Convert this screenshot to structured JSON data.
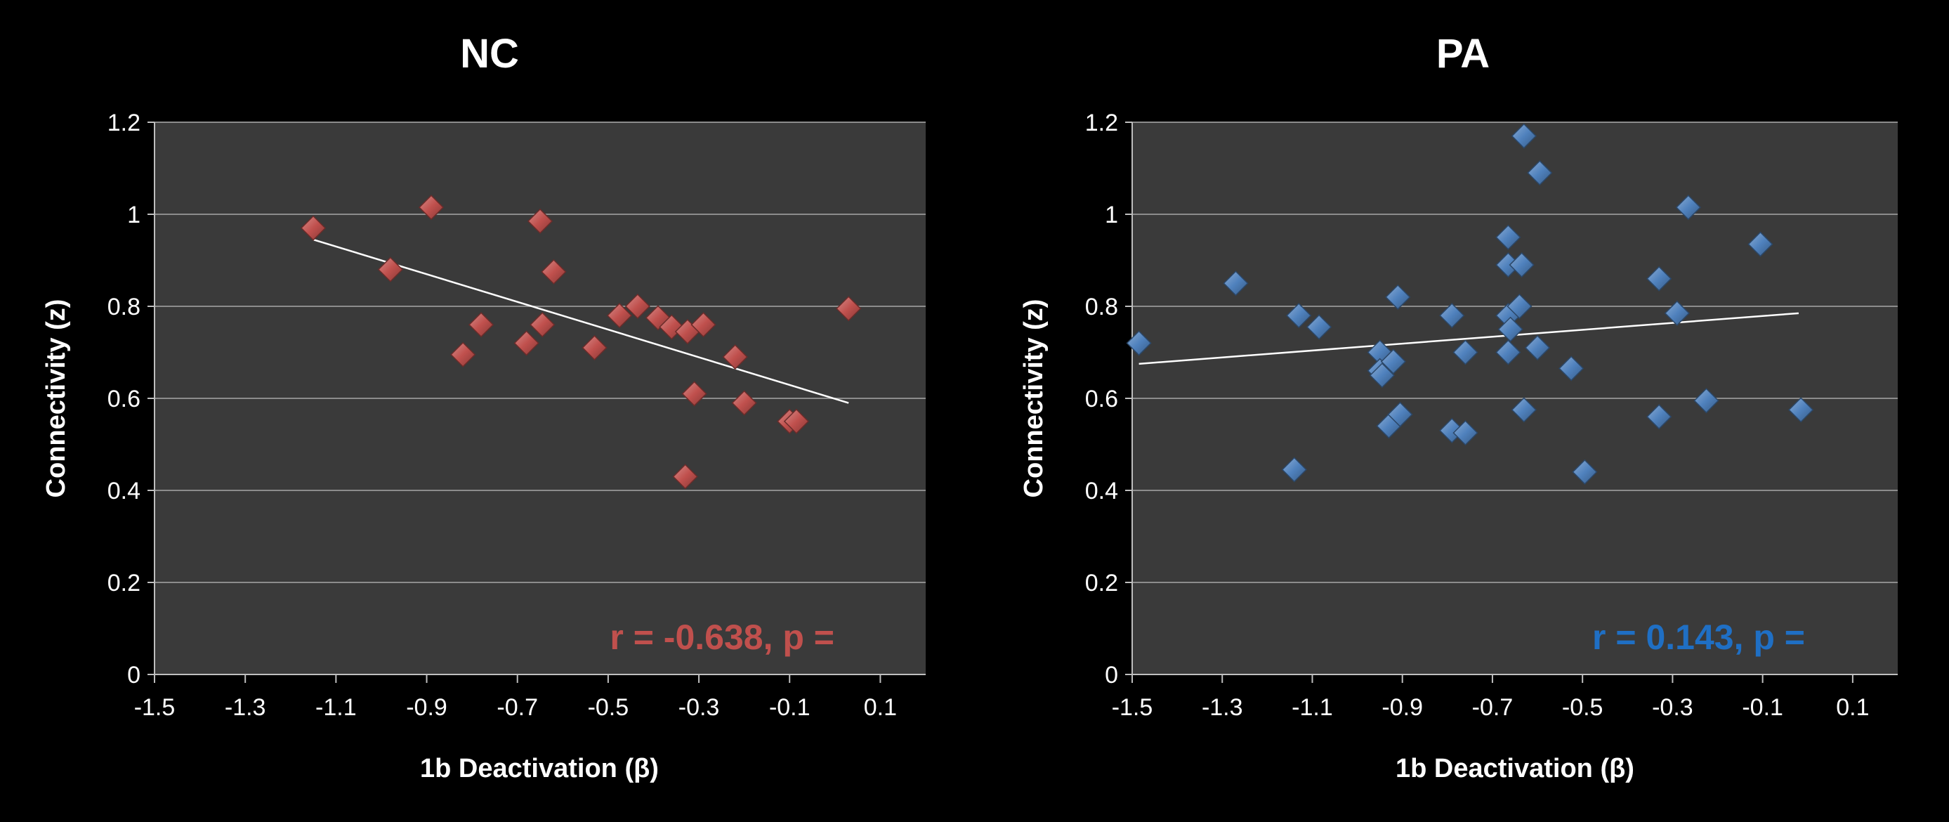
{
  "chart_data": [
    {
      "type": "scatter",
      "title": "NC",
      "xlabel": "1b Deactivation (β)",
      "ylabel": "Connectivity (z)",
      "xlim": [
        -1.5,
        0.2
      ],
      "ylim": [
        0,
        1.2
      ],
      "xticks": [
        "-1.5",
        "-1.3",
        "-1.1",
        "-0.9",
        "-0.7",
        "-0.5",
        "-0.3",
        "-0.1",
        "0.1"
      ],
      "yticks": [
        "0",
        "0.2",
        "0.4",
        "0.6",
        "0.8",
        "1",
        "1.2"
      ],
      "grid": true,
      "marker_color": "#c0504d",
      "stat_color": "#c0504d",
      "annotation": "r = -0.638, p =",
      "trendline": {
        "x": [
          -1.15,
          0.03
        ],
        "y": [
          0.945,
          0.59
        ],
        "color": "#ffffff"
      },
      "points": [
        {
          "x": -1.15,
          "y": 0.97
        },
        {
          "x": -0.98,
          "y": 0.88
        },
        {
          "x": -0.89,
          "y": 1.015
        },
        {
          "x": -0.82,
          "y": 0.695
        },
        {
          "x": -0.78,
          "y": 0.76
        },
        {
          "x": -0.68,
          "y": 0.72
        },
        {
          "x": -0.65,
          "y": 0.985
        },
        {
          "x": -0.645,
          "y": 0.76
        },
        {
          "x": -0.62,
          "y": 0.875
        },
        {
          "x": -0.53,
          "y": 0.71
        },
        {
          "x": -0.475,
          "y": 0.78
        },
        {
          "x": -0.435,
          "y": 0.8
        },
        {
          "x": -0.39,
          "y": 0.775
        },
        {
          "x": -0.36,
          "y": 0.755
        },
        {
          "x": -0.325,
          "y": 0.745
        },
        {
          "x": -0.29,
          "y": 0.76
        },
        {
          "x": -0.31,
          "y": 0.61
        },
        {
          "x": -0.33,
          "y": 0.43
        },
        {
          "x": -0.22,
          "y": 0.69
        },
        {
          "x": -0.2,
          "y": 0.59
        },
        {
          "x": -0.1,
          "y": 0.55
        },
        {
          "x": -0.085,
          "y": 0.55
        },
        {
          "x": 0.03,
          "y": 0.795
        }
      ]
    },
    {
      "type": "scatter",
      "title": "PA",
      "xlabel": "1b Deactivation (β)",
      "ylabel": "Connectivity (z)",
      "xlim": [
        -1.5,
        0.2
      ],
      "ylim": [
        0,
        1.2
      ],
      "xticks": [
        "-1.5",
        "-1.3",
        "-1.1",
        "-0.9",
        "-0.7",
        "-0.5",
        "-0.3",
        "-0.1",
        "0.1"
      ],
      "yticks": [
        "0",
        "0.2",
        "0.4",
        "0.6",
        "0.8",
        "1",
        "1.2"
      ],
      "grid": true,
      "marker_color": "#4f81bd",
      "stat_color": "#1f6fc4",
      "annotation": "r = 0.143, p =",
      "trendline": {
        "x": [
          -1.485,
          -0.02
        ],
        "y": [
          0.675,
          0.785
        ],
        "color": "#ffffff"
      },
      "points": [
        {
          "x": -1.485,
          "y": 0.72
        },
        {
          "x": -1.27,
          "y": 0.85
        },
        {
          "x": -1.14,
          "y": 0.445
        },
        {
          "x": -1.13,
          "y": 0.78
        },
        {
          "x": -1.085,
          "y": 0.755
        },
        {
          "x": -0.95,
          "y": 0.7
        },
        {
          "x": -0.95,
          "y": 0.66
        },
        {
          "x": -0.945,
          "y": 0.65
        },
        {
          "x": -0.92,
          "y": 0.68
        },
        {
          "x": -0.91,
          "y": 0.82
        },
        {
          "x": -0.93,
          "y": 0.54
        },
        {
          "x": -0.905,
          "y": 0.565
        },
        {
          "x": -0.79,
          "y": 0.78
        },
        {
          "x": -0.79,
          "y": 0.53
        },
        {
          "x": -0.76,
          "y": 0.525
        },
        {
          "x": -0.76,
          "y": 0.7
        },
        {
          "x": -0.665,
          "y": 0.95
        },
        {
          "x": -0.665,
          "y": 0.89
        },
        {
          "x": -0.635,
          "y": 0.89
        },
        {
          "x": -0.665,
          "y": 0.78
        },
        {
          "x": -0.66,
          "y": 0.75
        },
        {
          "x": -0.665,
          "y": 0.7
        },
        {
          "x": -0.64,
          "y": 0.8
        },
        {
          "x": -0.63,
          "y": 1.17
        },
        {
          "x": -0.595,
          "y": 1.09
        },
        {
          "x": -0.6,
          "y": 0.71
        },
        {
          "x": -0.63,
          "y": 0.575
        },
        {
          "x": -0.525,
          "y": 0.665
        },
        {
          "x": -0.495,
          "y": 0.44
        },
        {
          "x": -0.33,
          "y": 0.86
        },
        {
          "x": -0.33,
          "y": 0.56
        },
        {
          "x": -0.29,
          "y": 0.785
        },
        {
          "x": -0.265,
          "y": 1.015
        },
        {
          "x": -0.225,
          "y": 0.595
        },
        {
          "x": -0.105,
          "y": 0.935
        },
        {
          "x": -0.015,
          "y": 0.575
        }
      ]
    }
  ]
}
